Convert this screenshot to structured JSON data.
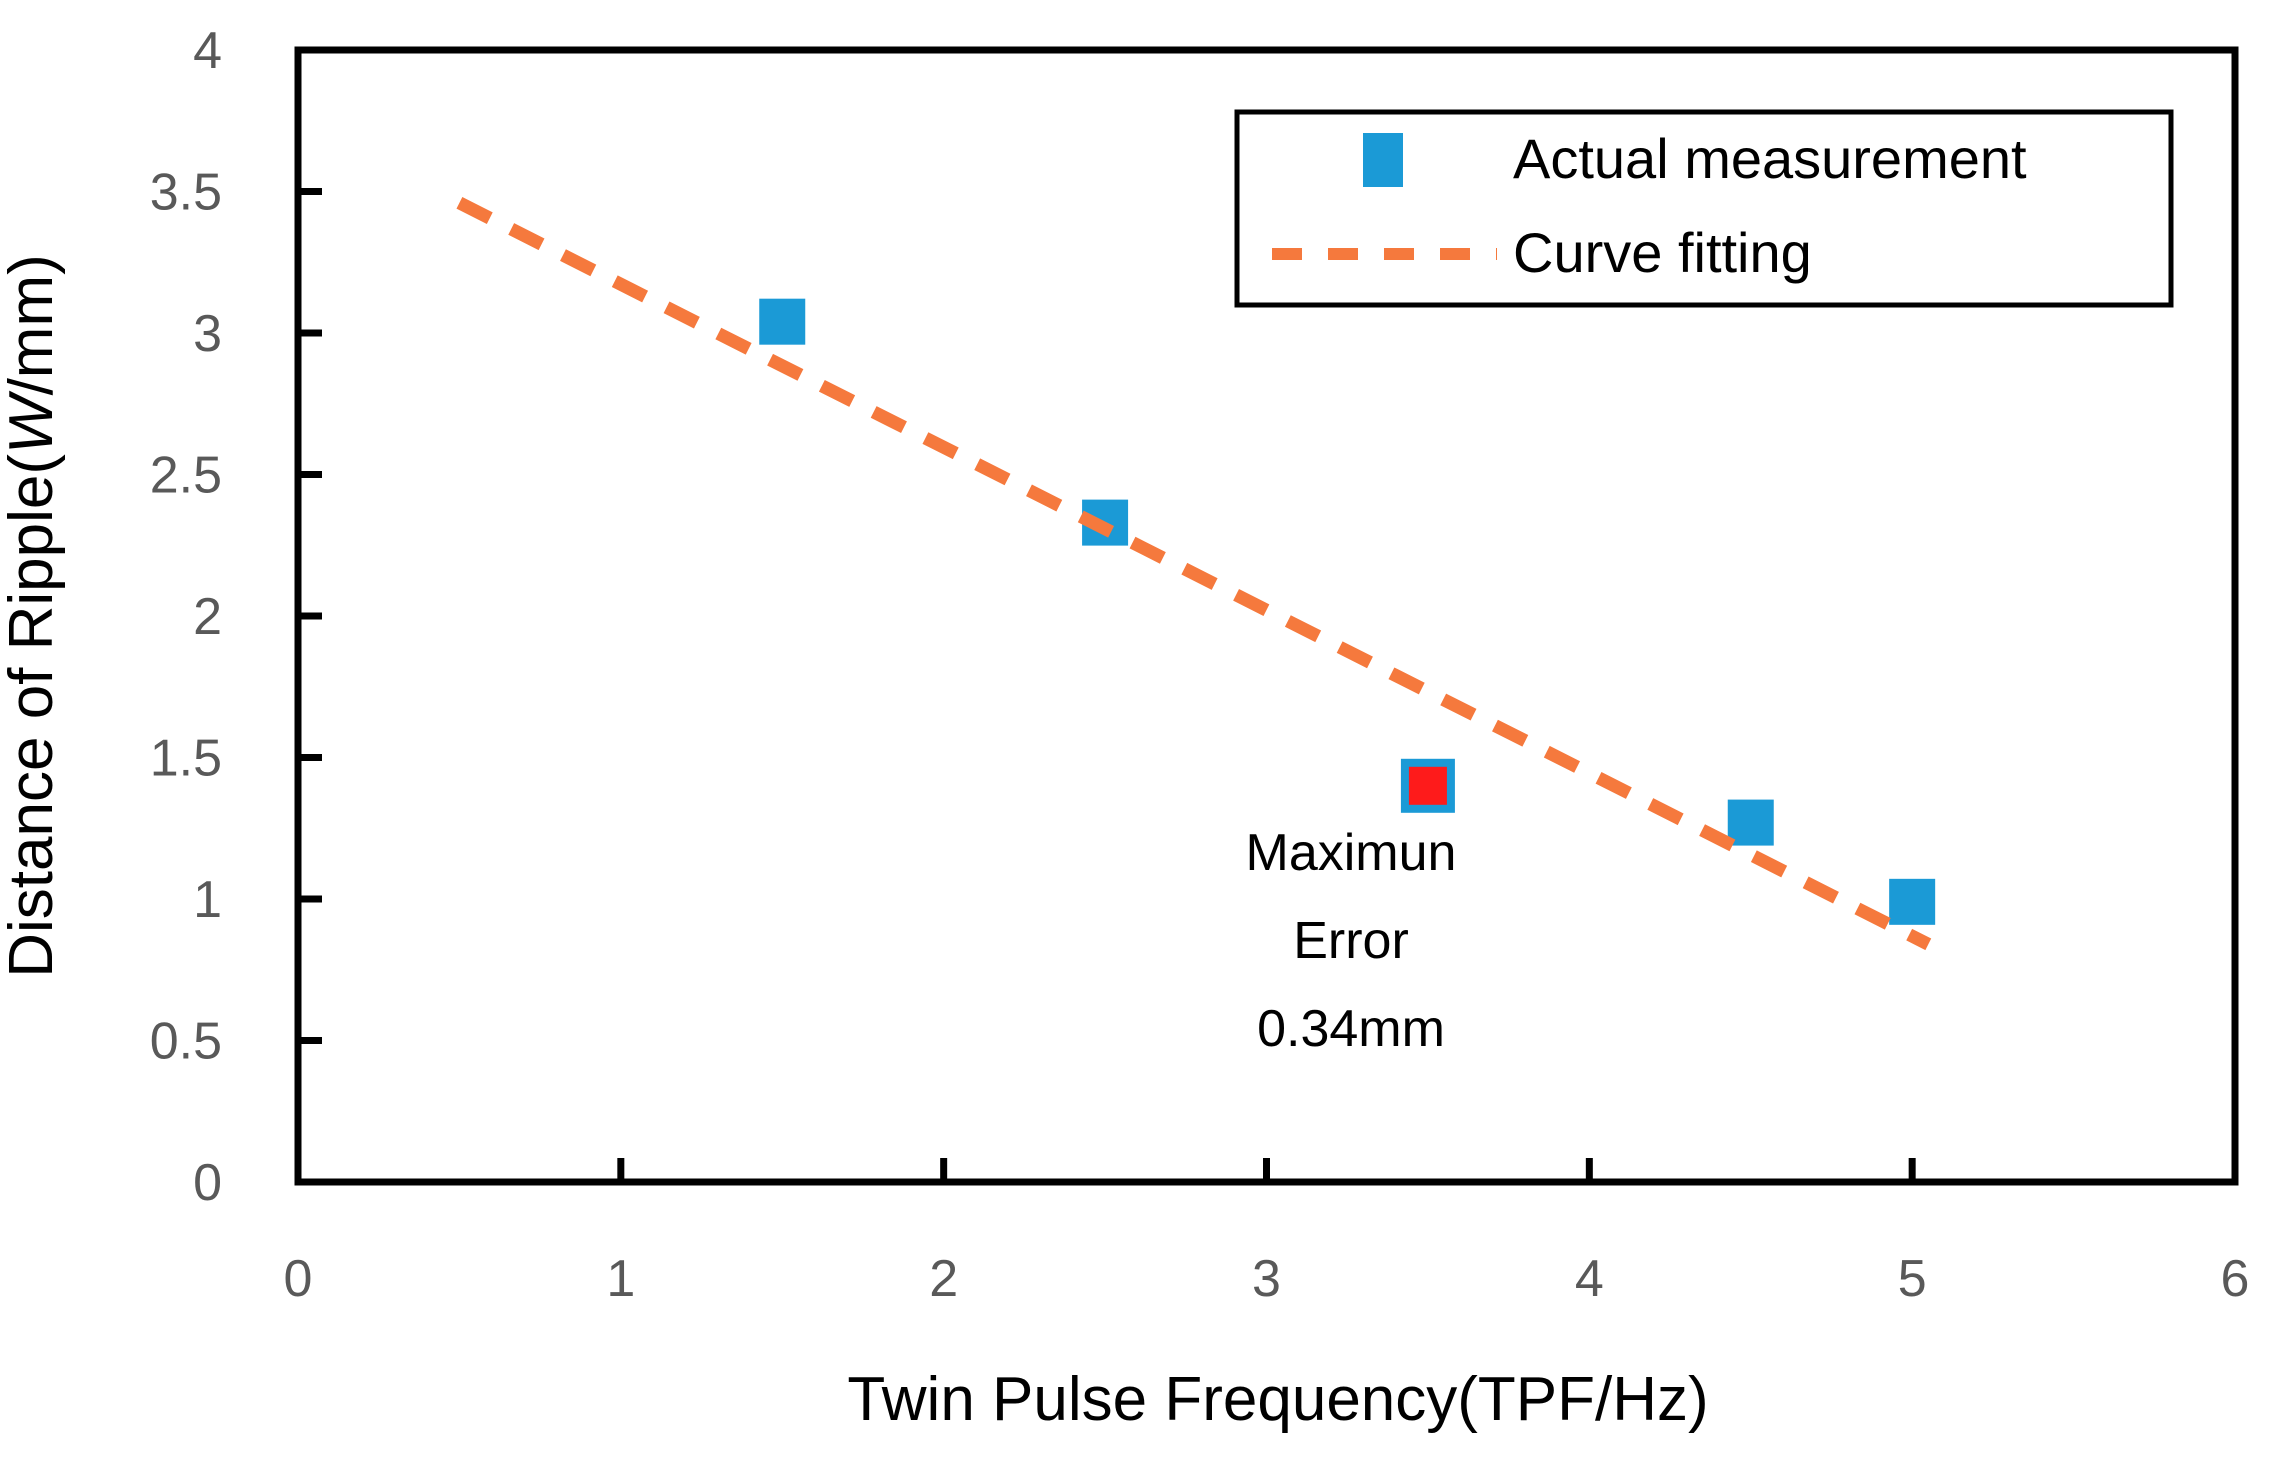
{
  "figure": {
    "background": "#ffffff"
  },
  "colors": {
    "marker_blue": "#1b9ad6",
    "fit_orange": "#f5793d",
    "error_red": "#fe1b1b",
    "tick_label_gray": "#595959",
    "axis_black": "#000000"
  },
  "chart_data": {
    "type": "scatter",
    "title": "",
    "xlabel": "Twin Pulse Frequency(TPF/Hz)",
    "ylabel": "Distance of Ripple(W/mm)",
    "ylabel_parts": {
      "prefix": "Distance of Ripple(",
      "italic": "W",
      "suffix": "/mm)"
    },
    "xlim": [
      0,
      6
    ],
    "ylim": [
      0,
      4
    ],
    "xticks": [
      0,
      1,
      2,
      3,
      4,
      5,
      6
    ],
    "yticks": [
      0,
      0.5,
      1,
      1.5,
      2,
      2.5,
      3,
      3.5,
      4
    ],
    "grid": false,
    "series": [
      {
        "name": "Actual measurement",
        "type": "scatter",
        "marker": "square",
        "color": "#1b9ad6",
        "points": [
          [
            1.5,
            3.04
          ],
          [
            2.5,
            2.33
          ],
          [
            4.5,
            1.27
          ],
          [
            5.0,
            0.99
          ]
        ]
      },
      {
        "name": "Maximum error point",
        "type": "scatter",
        "marker": "square",
        "color": "#fe1b1b",
        "border_color": "#1b9ad6",
        "points": [
          [
            3.5,
            1.4
          ]
        ]
      },
      {
        "name": "Curve fitting",
        "type": "line",
        "style": "dashed",
        "color": "#f5793d",
        "points": [
          [
            0.5,
            3.46
          ],
          [
            5.05,
            0.84
          ]
        ]
      }
    ],
    "legend": {
      "position": "top-right",
      "entries": [
        {
          "label": "Actual measurement",
          "marker": "square",
          "color": "#1b9ad6"
        },
        {
          "label": "Curve fitting",
          "marker": "dashed-line",
          "color": "#f5793d"
        }
      ]
    },
    "annotation": {
      "lines": [
        "Maximun",
        "Error",
        "0.34mm"
      ],
      "anchor_point": [
        3.5,
        1.4
      ]
    }
  }
}
